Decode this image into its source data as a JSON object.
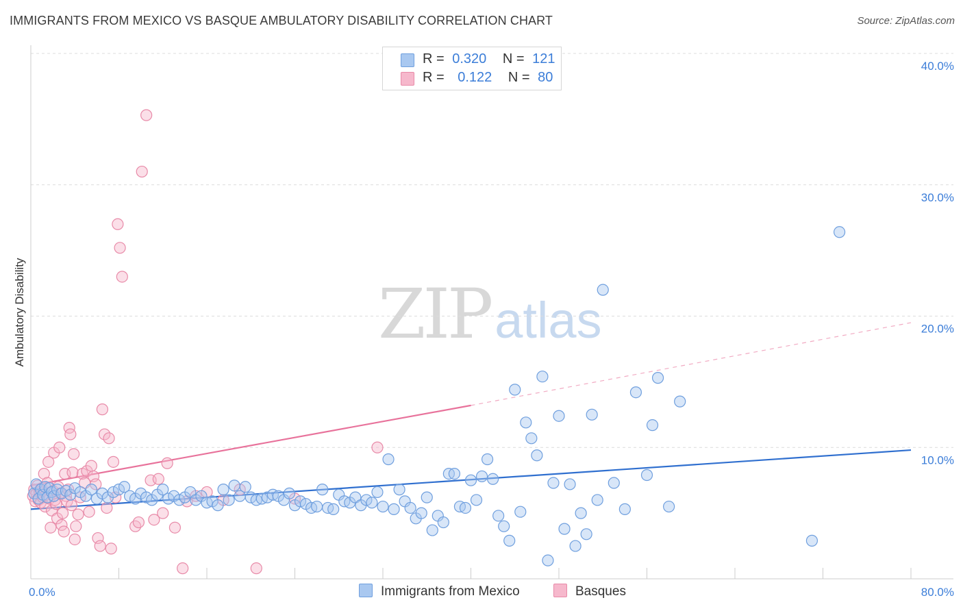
{
  "title": "IMMIGRANTS FROM MEXICO VS BASQUE AMBULATORY DISABILITY CORRELATION CHART",
  "source": "Source: ZipAtlas.com",
  "watermark": {
    "zip": "ZIP",
    "atlas": "atlas"
  },
  "legend": {
    "r_label": "R =",
    "n_label": "N =",
    "rows": [
      {
        "r": "0.320",
        "n": "121",
        "color": "#a9c8f0",
        "border": "#6f9fde"
      },
      {
        "r": "0.122",
        "n": "80",
        "color": "#f6b8cc",
        "border": "#e88aa8"
      }
    ]
  },
  "bottom_legend": [
    {
      "label": "Immigrants from Mexico",
      "color": "#a9c8f0",
      "border": "#6f9fde"
    },
    {
      "label": "Basques",
      "color": "#f6b8cc",
      "border": "#e88aa8"
    }
  ],
  "chart_data": {
    "type": "scatter",
    "title": "IMMIGRANTS FROM MEXICO VS BASQUE AMBULATORY DISABILITY CORRELATION CHART",
    "xlabel": "",
    "ylabel": "Ambulatory Disability",
    "xlim": [
      0,
      80
    ],
    "ylim": [
      0,
      40
    ],
    "x_tick_labels": {
      "min": "0.0%",
      "max": "80.0%"
    },
    "y_ticks": [
      10,
      20,
      30,
      40
    ],
    "y_tick_labels": [
      "10.0%",
      "20.0%",
      "30.0%",
      "40.0%"
    ],
    "grid": true,
    "series": [
      {
        "name": "Immigrants from Mexico",
        "color": "#6f9fde",
        "fill": "#a9c8f0",
        "trend": {
          "x0": 0,
          "y0": 5.3,
          "x1": 80,
          "y1": 9.8,
          "color": "#2f6fcf"
        },
        "points": [
          [
            0.3,
            6.5
          ],
          [
            0.5,
            7.2
          ],
          [
            0.7,
            6.1
          ],
          [
            0.9,
            6.8
          ],
          [
            1.1,
            6.4
          ],
          [
            1.3,
            7.0
          ],
          [
            1.5,
            6.2
          ],
          [
            1.7,
            6.9
          ],
          [
            1.9,
            6.6
          ],
          [
            2.1,
            6.3
          ],
          [
            2.4,
            6.8
          ],
          [
            2.8,
            6.5
          ],
          [
            3.2,
            6.7
          ],
          [
            3.6,
            6.4
          ],
          [
            4.0,
            6.9
          ],
          [
            4.5,
            6.6
          ],
          [
            5.0,
            6.3
          ],
          [
            5.5,
            6.8
          ],
          [
            6.0,
            6.1
          ],
          [
            6.5,
            6.5
          ],
          [
            7.0,
            6.2
          ],
          [
            7.5,
            6.6
          ],
          [
            8.0,
            6.8
          ],
          [
            8.5,
            7.0
          ],
          [
            9.0,
            6.3
          ],
          [
            9.5,
            6.1
          ],
          [
            10.0,
            6.5
          ],
          [
            10.5,
            6.2
          ],
          [
            11.0,
            6.0
          ],
          [
            11.5,
            6.4
          ],
          [
            12.0,
            6.8
          ],
          [
            12.5,
            6.1
          ],
          [
            13.0,
            6.3
          ],
          [
            13.5,
            6.0
          ],
          [
            14.0,
            6.2
          ],
          [
            14.5,
            6.6
          ],
          [
            15.0,
            6.0
          ],
          [
            15.5,
            6.3
          ],
          [
            16.0,
            5.8
          ],
          [
            16.5,
            5.9
          ],
          [
            17.0,
            5.6
          ],
          [
            17.5,
            6.8
          ],
          [
            18.0,
            6.0
          ],
          [
            18.5,
            7.1
          ],
          [
            19.0,
            6.3
          ],
          [
            19.5,
            7.0
          ],
          [
            20.0,
            6.2
          ],
          [
            20.5,
            6.0
          ],
          [
            21.0,
            6.1
          ],
          [
            21.5,
            6.2
          ],
          [
            22.0,
            6.4
          ],
          [
            22.5,
            6.3
          ],
          [
            23.0,
            6.0
          ],
          [
            23.5,
            6.5
          ],
          [
            24.0,
            5.6
          ],
          [
            24.5,
            5.9
          ],
          [
            25.0,
            5.7
          ],
          [
            25.5,
            5.4
          ],
          [
            26.0,
            5.5
          ],
          [
            26.5,
            6.8
          ],
          [
            27.0,
            5.4
          ],
          [
            27.5,
            5.3
          ],
          [
            28.0,
            6.4
          ],
          [
            28.5,
            5.9
          ],
          [
            29.0,
            5.8
          ],
          [
            29.5,
            6.2
          ],
          [
            30.0,
            5.6
          ],
          [
            30.5,
            6.0
          ],
          [
            31.0,
            5.8
          ],
          [
            31.5,
            6.6
          ],
          [
            32.0,
            5.5
          ],
          [
            32.5,
            9.1
          ],
          [
            33.0,
            5.3
          ],
          [
            33.5,
            6.8
          ],
          [
            34.0,
            5.9
          ],
          [
            34.5,
            5.4
          ],
          [
            35.0,
            4.6
          ],
          [
            35.5,
            5.0
          ],
          [
            36.0,
            6.2
          ],
          [
            36.5,
            3.7
          ],
          [
            37.0,
            4.8
          ],
          [
            37.5,
            4.3
          ],
          [
            38.0,
            8.0
          ],
          [
            38.5,
            8.0
          ],
          [
            39.0,
            5.5
          ],
          [
            39.5,
            5.4
          ],
          [
            40.0,
            7.5
          ],
          [
            40.5,
            6.0
          ],
          [
            41.0,
            7.8
          ],
          [
            41.5,
            9.1
          ],
          [
            42.0,
            7.6
          ],
          [
            42.5,
            4.8
          ],
          [
            43.0,
            4.0
          ],
          [
            43.5,
            2.9
          ],
          [
            44.0,
            14.4
          ],
          [
            44.5,
            5.1
          ],
          [
            45.0,
            11.9
          ],
          [
            45.5,
            10.7
          ],
          [
            46.0,
            9.4
          ],
          [
            46.5,
            15.4
          ],
          [
            47.0,
            1.4
          ],
          [
            47.5,
            7.3
          ],
          [
            48.0,
            12.4
          ],
          [
            48.5,
            3.8
          ],
          [
            49.0,
            7.2
          ],
          [
            49.5,
            2.5
          ],
          [
            50.0,
            5.0
          ],
          [
            50.5,
            3.4
          ],
          [
            51.0,
            12.5
          ],
          [
            51.5,
            6.0
          ],
          [
            52.0,
            22.0
          ],
          [
            53.0,
            7.3
          ],
          [
            54.0,
            5.3
          ],
          [
            55.0,
            14.2
          ],
          [
            56.0,
            7.9
          ],
          [
            56.5,
            11.7
          ],
          [
            57.0,
            15.3
          ],
          [
            58.0,
            5.5
          ],
          [
            59.0,
            13.5
          ],
          [
            71.0,
            2.9
          ],
          [
            73.5,
            26.4
          ]
        ]
      },
      {
        "name": "Basques",
        "color": "#e88aa8",
        "fill": "#f6b8cc",
        "trend": {
          "x0": 0,
          "y0": 7.1,
          "x1": 40,
          "y1": 13.2,
          "color": "#e8729b"
        },
        "trend_ext": {
          "x0": 40,
          "y0": 13.2,
          "x1": 80,
          "y1": 19.5
        },
        "points": [
          [
            0.2,
            6.3
          ],
          [
            0.3,
            6.8
          ],
          [
            0.4,
            5.9
          ],
          [
            0.5,
            6.5
          ],
          [
            0.6,
            7.1
          ],
          [
            0.7,
            6.0
          ],
          [
            0.8,
            6.6
          ],
          [
            0.9,
            5.8
          ],
          [
            1.0,
            6.9
          ],
          [
            1.1,
            6.2
          ],
          [
            1.2,
            8.0
          ],
          [
            1.3,
            5.5
          ],
          [
            1.4,
            6.4
          ],
          [
            1.5,
            7.3
          ],
          [
            1.6,
            8.9
          ],
          [
            1.7,
            6.1
          ],
          [
            1.8,
            3.9
          ],
          [
            1.9,
            5.2
          ],
          [
            2.0,
            6.7
          ],
          [
            2.1,
            9.6
          ],
          [
            2.2,
            6.0
          ],
          [
            2.3,
            5.7
          ],
          [
            2.4,
            4.6
          ],
          [
            2.5,
            7.0
          ],
          [
            2.6,
            10.0
          ],
          [
            2.7,
            6.5
          ],
          [
            2.8,
            4.1
          ],
          [
            2.9,
            5.0
          ],
          [
            3.0,
            3.6
          ],
          [
            3.1,
            8.0
          ],
          [
            3.2,
            6.3
          ],
          [
            3.3,
            5.9
          ],
          [
            3.4,
            6.8
          ],
          [
            3.5,
            11.5
          ],
          [
            3.6,
            11.0
          ],
          [
            3.7,
            5.6
          ],
          [
            3.8,
            8.1
          ],
          [
            3.9,
            9.5
          ],
          [
            4.0,
            3.0
          ],
          [
            4.1,
            4.0
          ],
          [
            4.3,
            4.9
          ],
          [
            4.5,
            6.2
          ],
          [
            4.7,
            8.0
          ],
          [
            4.9,
            7.3
          ],
          [
            5.1,
            8.2
          ],
          [
            5.3,
            5.1
          ],
          [
            5.5,
            8.6
          ],
          [
            5.7,
            7.8
          ],
          [
            5.9,
            7.2
          ],
          [
            6.1,
            3.1
          ],
          [
            6.3,
            2.5
          ],
          [
            6.5,
            12.9
          ],
          [
            6.7,
            11.0
          ],
          [
            6.9,
            5.4
          ],
          [
            7.1,
            10.7
          ],
          [
            7.3,
            2.3
          ],
          [
            7.5,
            8.9
          ],
          [
            7.7,
            6.2
          ],
          [
            7.9,
            27.0
          ],
          [
            8.1,
            25.2
          ],
          [
            8.3,
            23.0
          ],
          [
            9.5,
            4.0
          ],
          [
            9.8,
            4.3
          ],
          [
            10.1,
            31.0
          ],
          [
            10.5,
            35.3
          ],
          [
            10.9,
            7.5
          ],
          [
            11.2,
            4.5
          ],
          [
            11.6,
            7.6
          ],
          [
            12.0,
            5.0
          ],
          [
            12.4,
            8.8
          ],
          [
            13.1,
            3.9
          ],
          [
            13.8,
            0.8
          ],
          [
            14.2,
            5.9
          ],
          [
            15.0,
            6.3
          ],
          [
            16.0,
            6.6
          ],
          [
            17.5,
            6.0
          ],
          [
            19.0,
            6.8
          ],
          [
            20.5,
            0.8
          ],
          [
            24.0,
            6.1
          ],
          [
            31.5,
            10.0
          ]
        ]
      }
    ]
  }
}
